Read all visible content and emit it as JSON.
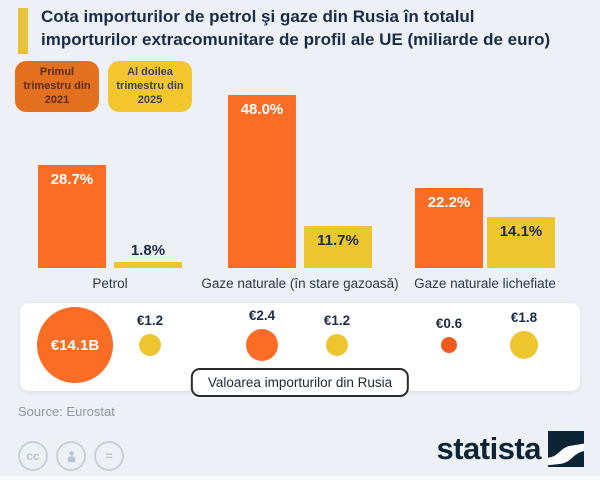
{
  "header": {
    "title": "Cota importurilor de petrol şi gaze din Rusia în totalul importurilor extracomunitare de profil ale UE (miliarde de euro)",
    "accent_color": "#e9c23b"
  },
  "legend": {
    "items": [
      {
        "label": "Primul trimestru din 2021",
        "color": "#e2701e",
        "text_color": "#5f2c0a"
      },
      {
        "label": "Al doilea trimestru din 2025",
        "color": "#f4c62d",
        "text_color": "#3c4455"
      }
    ]
  },
  "chart_data": {
    "type": "bar",
    "title": "Cota importurilor de petrol şi gaze din Rusia în totalul importurilor extracomunitare de profil ale UE (miliarde de euro)",
    "categories": [
      "Petrol",
      "Gaze naturale (în stare gazoasă)",
      "Gaze naturale lichefiate"
    ],
    "series": [
      {
        "name": "Primul trimestru din 2021",
        "color": "#fb6d25",
        "label_color": "#ffffff",
        "values": [
          28.7,
          48.0,
          22.2
        ],
        "value_labels": [
          "28.7%",
          "48.0%",
          "22.2%"
        ]
      },
      {
        "name": "Al doilea trimestru din 2025",
        "color": "#edc52f",
        "label_color": "#1b2b4a",
        "values": [
          1.8,
          11.7,
          14.1
        ],
        "value_labels": [
          "1.8%",
          "11.7%",
          "14.1%"
        ]
      }
    ],
    "unit": "%",
    "ylim": [
      0,
      50
    ],
    "grid": false,
    "legend_position": "top-left",
    "bubbles": {
      "caption": "Valoarea importurilor din Rusia",
      "unit": "miliarde de euro",
      "items": [
        {
          "category": "Petrol",
          "series": 0,
          "value": 14.1,
          "label": "€14.1B",
          "label_inside": true
        },
        {
          "category": "Petrol",
          "series": 1,
          "value": 1.2,
          "label": "€1.2"
        },
        {
          "category": "Gaze naturale (în stare gazoasă)",
          "series": 0,
          "value": 2.4,
          "label": "€2.4"
        },
        {
          "category": "Gaze naturale (în stare gazoasă)",
          "series": 1,
          "value": 1.2,
          "label": "€1.2"
        },
        {
          "category": "Gaze naturale lichefiate",
          "series": 0,
          "value": 0.6,
          "label": "€0.6",
          "color": "#f4591c"
        },
        {
          "category": "Gaze naturale lichefiate",
          "series": 1,
          "value": 1.8,
          "label": "€1.8"
        }
      ]
    }
  },
  "footer": {
    "source": "Source: Eurostat",
    "logo_text": "statista",
    "icons": [
      {
        "name": "cc-license-icon",
        "glyph": "cc"
      },
      {
        "name": "attribution-icon",
        "glyph": "person"
      },
      {
        "name": "no-derivatives-icon",
        "glyph": "="
      }
    ]
  }
}
